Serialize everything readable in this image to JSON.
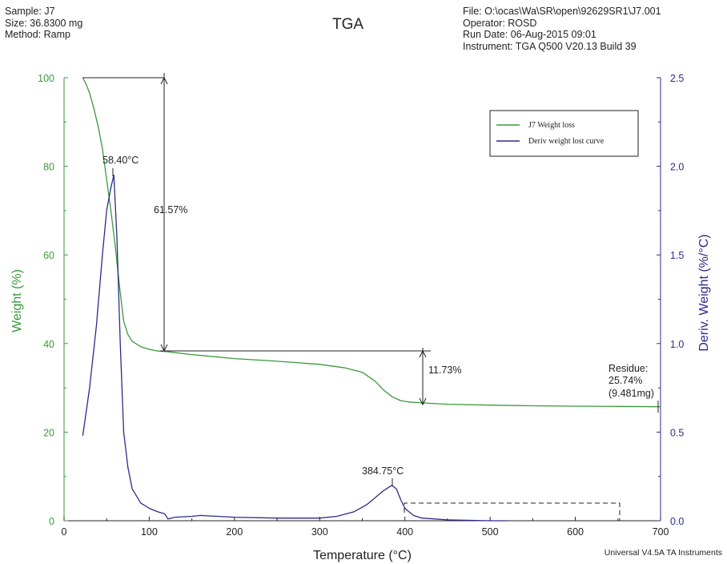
{
  "header": {
    "sample_label": "Sample: J7",
    "size_label": "Size:  36.8300 mg",
    "method_label": "Method: Ramp",
    "file_label": "File: O:\\ocas\\Wa\\SR\\open\\92629SR1\\J7.001",
    "operator_label": "Operator: ROSD",
    "run_date_label": "Run Date: 06-Aug-2015 09:01",
    "instrument_label": "Instrument: TGA Q500 V20.13 Build 39"
  },
  "footer": "Universal V4.5A TA Instruments",
  "colors": {
    "weight": "#3a9a3a",
    "deriv": "#2b2b8c",
    "axis_weight": "#3a9a3a",
    "axis_deriv": "#2b2b8c",
    "annotation": "#222222"
  },
  "chart_data": {
    "type": "line",
    "title": "TGA",
    "xlabel": "Temperature (°C)",
    "ylabel": "Weight (%)",
    "y2label": "Deriv. Weight (%/°C)",
    "xlim": [
      0,
      700
    ],
    "ylim": [
      0,
      100
    ],
    "y2lim": [
      0.0,
      2.5
    ],
    "xticks": [
      "0",
      "100",
      "200",
      "300",
      "400",
      "500",
      "600",
      "700"
    ],
    "yticks": [
      "0",
      "20",
      "40",
      "60",
      "80",
      "100"
    ],
    "y2ticks": [
      "0.0",
      "0.5",
      "1.0",
      "1.5",
      "2.0",
      "2.5"
    ],
    "legend": [
      "J7 Weight loss",
      "Deriv weight lost curve"
    ],
    "legend_position": "top-right",
    "grid": false,
    "series": [
      {
        "name": "J7 Weight loss",
        "axis": "left",
        "x": [
          22,
          26,
          30,
          35,
          40,
          45,
          50,
          55,
          60,
          65,
          70,
          75,
          80,
          90,
          100,
          110,
          120,
          150,
          200,
          250,
          300,
          330,
          350,
          365,
          375,
          385,
          395,
          405,
          420,
          450,
          500,
          550,
          600,
          650,
          700
        ],
        "y": [
          100,
          98.5,
          96.5,
          93,
          89,
          84,
          77,
          70,
          62,
          53,
          45,
          42,
          40.5,
          39.3,
          38.7,
          38.3,
          38.2,
          37.5,
          36.6,
          36,
          35.3,
          34.5,
          33.5,
          31.5,
          29.5,
          28,
          27.1,
          26.8,
          26.6,
          26.3,
          26.1,
          25.95,
          25.85,
          25.8,
          25.74
        ]
      },
      {
        "name": "Deriv weight lost curve",
        "axis": "right",
        "x": [
          22,
          30,
          38,
          45,
          50,
          55,
          58.4,
          62,
          66,
          70,
          75,
          80,
          90,
          100,
          110,
          118,
          122,
          130,
          150,
          160,
          180,
          200,
          250,
          300,
          320,
          340,
          355,
          365,
          375,
          384.75,
          390,
          395,
          400,
          410,
          420,
          450,
          500,
          520
        ],
        "y": [
          0.48,
          0.75,
          1.1,
          1.5,
          1.75,
          1.88,
          1.95,
          1.6,
          1.0,
          0.5,
          0.3,
          0.18,
          0.1,
          0.07,
          0.05,
          0.04,
          0.01,
          0.02,
          0.025,
          0.03,
          0.025,
          0.02,
          0.015,
          0.015,
          0.025,
          0.05,
          0.09,
          0.13,
          0.17,
          0.2,
          0.18,
          0.12,
          0.07,
          0.03,
          0.015,
          0.005,
          0.0,
          0.0
        ]
      }
    ],
    "annotations": [
      {
        "text": "58.40°C",
        "x": 58.4,
        "y2": 1.95
      },
      {
        "text": "384.75°C",
        "x": 384.75,
        "y2": 0.2
      },
      {
        "text": "61.57%",
        "x": 118,
        "y_from": 100,
        "y_to": 38.43
      },
      {
        "text": "11.73%",
        "x": 420,
        "y_from": 38.43,
        "y_to": 26.7
      },
      {
        "text": "Residue:",
        "x": 700,
        "y": 25.74
      },
      {
        "text": "25.74%",
        "x": 700,
        "y": 25.74
      },
      {
        "text": "(9.481mg)",
        "x": 700,
        "y": 25.74
      }
    ]
  }
}
